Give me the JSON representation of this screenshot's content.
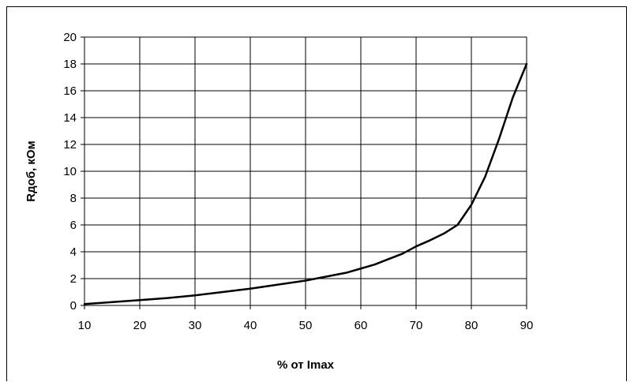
{
  "chart_data": {
    "type": "line",
    "title": "",
    "xlabel": "% от Imax",
    "ylabel": "Rдоб, кОм",
    "xlim": [
      10,
      90
    ],
    "ylim": [
      0,
      20
    ],
    "x_ticks": [
      10,
      20,
      30,
      40,
      50,
      60,
      70,
      80,
      90
    ],
    "y_ticks": [
      0,
      2,
      4,
      6,
      8,
      10,
      12,
      14,
      16,
      18,
      20
    ],
    "grid": true,
    "legend": "none",
    "colors": {
      "line": "#000000",
      "grid": "#000000",
      "background": "#ffffff"
    },
    "series": [
      {
        "x": [
          10,
          15,
          20,
          25,
          30,
          35,
          40,
          45,
          50,
          52.5,
          55,
          57.5,
          60,
          62.5,
          65,
          67.5,
          70,
          72.5,
          75,
          77.5,
          80,
          82.5,
          85,
          87.5,
          90
        ],
        "values": [
          0.1,
          0.25,
          0.4,
          0.55,
          0.75,
          1.0,
          1.25,
          1.55,
          1.85,
          2.05,
          2.25,
          2.45,
          2.75,
          3.05,
          3.45,
          3.85,
          4.4,
          4.85,
          5.35,
          6.0,
          7.5,
          9.6,
          12.4,
          15.5,
          18.0
        ]
      }
    ]
  }
}
